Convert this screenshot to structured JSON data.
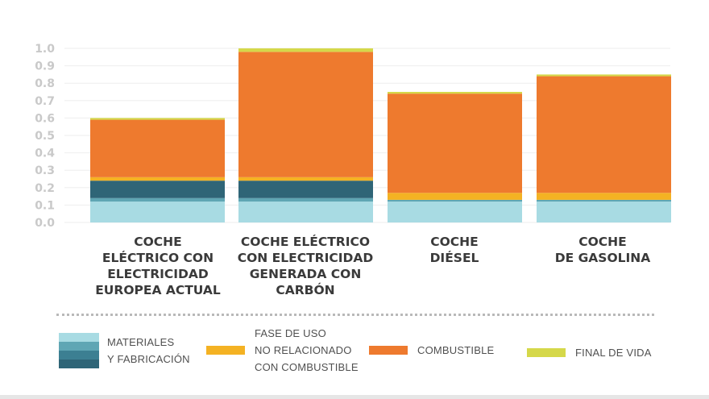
{
  "chart_data": {
    "type": "bar",
    "stacked": true,
    "categories": [
      "COCHE\nELÉCTRICO CON\nELECTRICIDAD\nEUROPEA ACTUAL",
      "COCHE ELÉCTRICO\nCON ELECTRICIDAD\nGENERADA CON\nCARBÓN",
      "COCHE\nDIÉSEL",
      "COCHE\nDE GASOLINA"
    ],
    "series": [
      {
        "name": "MATERIALES Y FABRICACIÓN (1)",
        "color": "#a8dbe3",
        "values": [
          0.12,
          0.12,
          0.12,
          0.12
        ]
      },
      {
        "name": "MATERIALES Y FABRICACIÓN (2)",
        "color": "#5fa6b4",
        "values": [
          0.02,
          0.02,
          0.01,
          0.01
        ]
      },
      {
        "name": "MATERIALES Y FABRICACIÓN (3)",
        "color": "#3c7f92",
        "values": [
          0.0,
          0.0,
          0.0,
          0.0
        ]
      },
      {
        "name": "MATERIALES Y FABRICACIÓN (4)",
        "color": "#2f6577",
        "values": [
          0.1,
          0.1,
          0.0,
          0.0
        ]
      },
      {
        "name": "FASE DE USO NO RELACIONADO CON COMBUSTIBLE",
        "color": "#f4b223",
        "values": [
          0.02,
          0.02,
          0.04,
          0.04
        ]
      },
      {
        "name": "COMBUSTIBLE",
        "color": "#ee7a2e",
        "values": [
          0.33,
          0.72,
          0.57,
          0.67
        ]
      },
      {
        "name": "FINAL DE VIDA",
        "color": "#d5d84a",
        "values": [
          0.01,
          0.02,
          0.01,
          0.01
        ]
      }
    ],
    "ylim": [
      0,
      1.0
    ],
    "yticks": [
      "0.0",
      "0.1",
      "0.2",
      "0.3",
      "0.4",
      "0.5",
      "0.6",
      "0.7",
      "0.8",
      "0.9",
      "1.0"
    ],
    "grid": true,
    "legend_position": "bottom"
  },
  "legend": {
    "materials": "MATERIALES\nY FABRICACIÓN",
    "use_phase": "FASE DE USO\nNO RELACIONADO\nCON COMBUSTIBLE",
    "fuel": "COMBUSTIBLE",
    "end_of_life": "FINAL DE VIDA"
  },
  "colors": {
    "materials_stack": [
      "#a8dbe3",
      "#5fa6b4",
      "#3c7f92",
      "#2f6577"
    ],
    "use_phase": "#f4b223",
    "fuel": "#ee7a2e",
    "end_of_life": "#d5d84a",
    "tick_text": "#c9c9c9",
    "grid": "#eeeeee"
  }
}
